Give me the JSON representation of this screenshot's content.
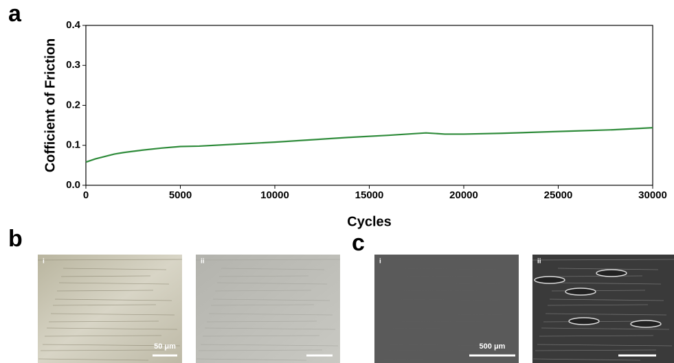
{
  "chart_data": {
    "type": "line",
    "panel_label": "a",
    "xlabel": "Cycles",
    "ylabel": "Cofficient of Friction",
    "x": [
      0,
      500,
      1000,
      1500,
      2000,
      3000,
      4000,
      5000,
      6000,
      8000,
      10000,
      12000,
      14000,
      16000,
      18000,
      19000,
      20000,
      22000,
      24000,
      26000,
      28000,
      30000
    ],
    "series": [
      {
        "color": "#2e8b3a",
        "values": [
          0.058,
          0.066,
          0.072,
          0.078,
          0.082,
          0.088,
          0.093,
          0.097,
          0.098,
          0.103,
          0.108,
          0.114,
          0.12,
          0.125,
          0.131,
          0.128,
          0.128,
          0.13,
          0.133,
          0.136,
          0.139,
          0.144
        ]
      }
    ],
    "xlim": [
      0,
      30000
    ],
    "xticks": [
      0,
      5000,
      10000,
      15000,
      20000,
      25000,
      30000
    ],
    "ylim": [
      0,
      0.4
    ],
    "yticks": [
      {
        "value": 0,
        "label": "0.0"
      },
      0.1,
      0.2,
      0.3,
      0.4
    ]
  },
  "panels": [
    {
      "label": "b",
      "images": [
        {
          "label": "i",
          "scale_bar": "50 μm"
        },
        {
          "label": "ii"
        }
      ]
    },
    {
      "label": "c",
      "images": [
        {
          "label": "i",
          "scale_bar": "500 μm"
        },
        {
          "label": "ii"
        }
      ]
    }
  ]
}
